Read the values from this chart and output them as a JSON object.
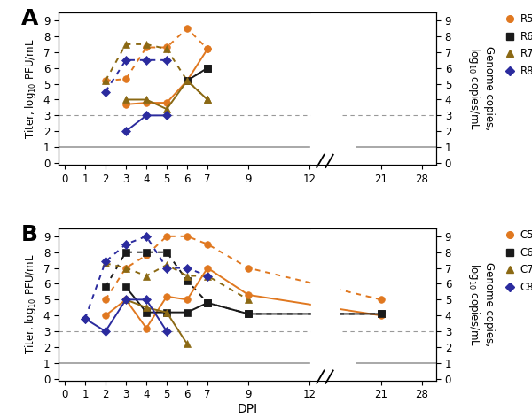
{
  "panel_A": {
    "title": "A",
    "solid_lines": {
      "R5": {
        "x": [
          3,
          4,
          5,
          6,
          7
        ],
        "y": [
          3.7,
          3.8,
          3.8,
          5.2,
          7.2
        ],
        "color": "#E07820",
        "marker": "o"
      },
      "R6": {
        "x": [
          6,
          7
        ],
        "y": [
          5.2,
          6.0
        ],
        "color": "#1a1a1a",
        "marker": "s"
      },
      "R7": {
        "x": [
          3,
          4,
          5,
          6,
          7
        ],
        "y": [
          4.0,
          4.0,
          3.4,
          5.2,
          4.0
        ],
        "color": "#8B6914",
        "marker": "^"
      },
      "R8": {
        "x": [
          3,
          4,
          5
        ],
        "y": [
          2.0,
          3.0,
          3.0
        ],
        "color": "#2B2B9E",
        "marker": "D"
      }
    },
    "dotted_lines": {
      "R5": {
        "x": [
          2,
          3,
          4,
          5,
          6,
          7
        ],
        "y": [
          5.2,
          5.3,
          7.3,
          7.3,
          8.5,
          7.2
        ],
        "color": "#E07820",
        "marker": "o"
      },
      "R6": {
        "x": [
          6,
          7
        ],
        "y": [
          5.2,
          6.0
        ],
        "color": "#1a1a1a",
        "marker": "s"
      },
      "R7": {
        "x": [
          2,
          3,
          4,
          5,
          6,
          7
        ],
        "y": [
          5.2,
          7.5,
          7.5,
          7.2,
          5.2,
          4.0
        ],
        "color": "#8B6914",
        "marker": "^"
      },
      "R8": {
        "x": [
          2,
          3,
          4,
          5
        ],
        "y": [
          4.5,
          6.5,
          6.5,
          6.5
        ],
        "color": "#2B2B9E",
        "marker": "D"
      }
    },
    "legend_labels": [
      "R5",
      "R6",
      "R7",
      "R8"
    ],
    "legend_colors": [
      "#E07820",
      "#1a1a1a",
      "#8B6914",
      "#2B2B9E"
    ],
    "legend_markers": [
      "o",
      "s",
      "^",
      "D"
    ]
  },
  "panel_B": {
    "title": "B",
    "solid_lines": {
      "C5": {
        "x": [
          2,
          3,
          4,
          5,
          6,
          7,
          9,
          21
        ],
        "y": [
          4.0,
          5.0,
          3.2,
          5.2,
          5.0,
          7.0,
          5.3,
          4.0
        ],
        "color": "#E07820",
        "marker": "o"
      },
      "C6": {
        "x": [
          3,
          4,
          5,
          6,
          7,
          9,
          21
        ],
        "y": [
          5.8,
          4.2,
          4.2,
          4.2,
          4.8,
          4.1,
          4.1
        ],
        "color": "#1a1a1a",
        "marker": "s"
      },
      "C7": {
        "x": [
          3,
          4,
          5,
          6
        ],
        "y": [
          5.0,
          4.5,
          4.2,
          2.2
        ],
        "color": "#8B6914",
        "marker": "^"
      },
      "C8": {
        "x": [
          1,
          2,
          3,
          4,
          5
        ],
        "y": [
          3.8,
          3.0,
          5.0,
          5.0,
          3.0
        ],
        "color": "#2B2B9E",
        "marker": "D"
      }
    },
    "dotted_lines": {
      "C5": {
        "x": [
          2,
          3,
          4,
          5,
          6,
          7,
          9,
          21
        ],
        "y": [
          5.0,
          7.0,
          7.8,
          9.0,
          9.0,
          8.5,
          7.0,
          5.0
        ],
        "color": "#E07820",
        "marker": "o"
      },
      "C6": {
        "x": [
          2,
          3,
          4,
          5,
          6,
          7,
          9,
          21
        ],
        "y": [
          5.8,
          8.0,
          8.0,
          8.0,
          6.2,
          4.8,
          4.1,
          4.1
        ],
        "color": "#1a1a1a",
        "marker": "s"
      },
      "C7": {
        "x": [
          2,
          3,
          4,
          5,
          6,
          7,
          9
        ],
        "y": [
          7.3,
          7.0,
          6.5,
          7.2,
          6.5,
          6.5,
          5.0
        ],
        "color": "#8B6914",
        "marker": "^"
      },
      "C8": {
        "x": [
          1,
          2,
          3,
          4,
          5,
          6,
          7
        ],
        "y": [
          3.8,
          7.4,
          8.5,
          9.0,
          7.0,
          7.0,
          6.5
        ],
        "color": "#2B2B9E",
        "marker": "D"
      }
    },
    "legend_labels": [
      "C5",
      "C6",
      "C7",
      "C8"
    ],
    "legend_colors": [
      "#E07820",
      "#1a1a1a",
      "#8B6914",
      "#2B2B9E"
    ],
    "legend_markers": [
      "o",
      "s",
      "^",
      "D"
    ]
  },
  "y_ticks": [
    0,
    1,
    2,
    3,
    4,
    5,
    6,
    7,
    8,
    9
  ],
  "detection_limit_virus": 1.0,
  "detection_limit_genome": 3.0,
  "xlabel": "DPI",
  "ylabel_left": "Titer, log$_{10}$ PFU/mL",
  "ylabel_right": "Genome copies,\nlog$_{10}$ copies/mL",
  "markersize": 5.5,
  "linewidth": 1.4,
  "xlim_min": -0.3,
  "xlim_max": 18.2,
  "ylim_min": 0,
  "ylim_max": 9,
  "x_21_disp": 15.5,
  "x_28_disp": 17.5,
  "break_gap_start": 12.0,
  "break_gap_end": 13.5
}
